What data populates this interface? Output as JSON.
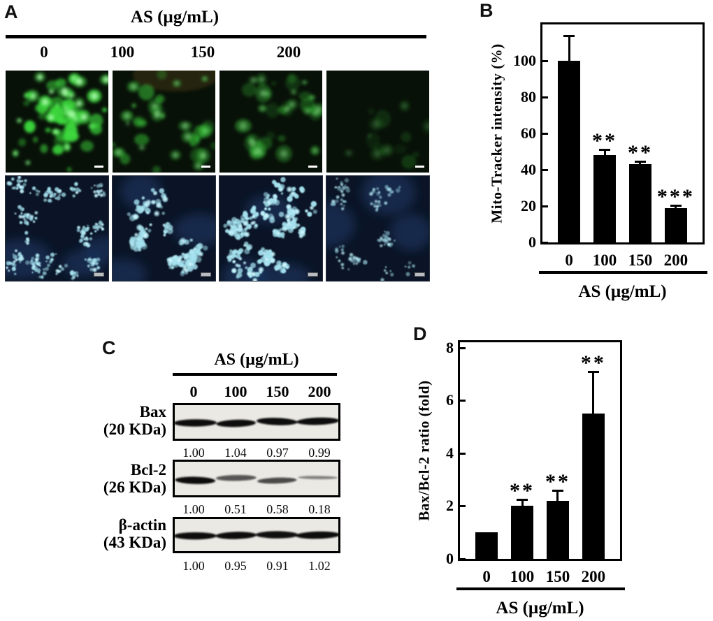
{
  "figure_background": "#ffffff",
  "panel_a": {
    "label": "A",
    "title": "AS (µg/mL)",
    "doses": [
      "0",
      "100",
      "150",
      "200"
    ],
    "rows": [
      {
        "name": "mito-tracker-green-row",
        "stain_color": "#3cd83c",
        "background": "#081108",
        "tiles": [
          {
            "blobs": 60,
            "intensity": 1.0,
            "tint_top": false
          },
          {
            "blobs": 36,
            "intensity": 0.5,
            "tint_top": true
          },
          {
            "blobs": 32,
            "intensity": 0.42,
            "tint_top": false
          },
          {
            "blobs": 16,
            "intensity": 0.2,
            "tint_top": false
          }
        ],
        "scale_bar_color": "#ffffff"
      },
      {
        "name": "nuclei-blue-row",
        "stain_color": "#a5e2ef",
        "background": "#0a1426",
        "tiles": [
          {
            "clusters": 26,
            "brightness": 0.95,
            "dot_scale": 1.0
          },
          {
            "clusters": 17,
            "brightness": 0.9,
            "dot_scale": 1.5
          },
          {
            "clusters": 30,
            "brightness": 1.0,
            "dot_scale": 1.3
          },
          {
            "clusters": 12,
            "brightness": 0.65,
            "dot_scale": 1.0
          }
        ],
        "scale_bar_color": "#b9bdc2"
      }
    ]
  },
  "panel_c": {
    "label": "C",
    "title": "AS (µg/mL)",
    "doses": [
      "0",
      "100",
      "150",
      "200"
    ],
    "blots": [
      {
        "protein": "Bax",
        "mw": "(20 KDa)",
        "values": [
          "1.00",
          "1.04",
          "0.97",
          "0.99"
        ]
      },
      {
        "protein": "Bcl-2",
        "mw": "(26 KDa)",
        "values": [
          "1.00",
          "0.51",
          "0.58",
          "0.18"
        ]
      },
      {
        "protein": "β-actin",
        "mw": "(43 KDa)",
        "values": [
          "1.00",
          "0.95",
          "0.91",
          "1.02"
        ]
      }
    ]
  },
  "chart_data": [
    {
      "id": "b",
      "panel_label": "B",
      "type": "bar",
      "categories": [
        "0",
        "100",
        "150",
        "200"
      ],
      "values": [
        100,
        48,
        43,
        19
      ],
      "errors_upper": [
        14,
        3,
        1.5,
        1.5
      ],
      "sig_labels": [
        "",
        "**",
        "**",
        "***"
      ],
      "title": "",
      "xlabel": "AS (µg/mL)",
      "ylabel": "Mito-Tracker intensity (%)",
      "ylim": [
        0,
        120
      ],
      "yticks": [
        0,
        20,
        40,
        60,
        80,
        100
      ],
      "grid": false,
      "bar_color": "#000000"
    },
    {
      "id": "d",
      "panel_label": "D",
      "type": "bar",
      "categories": [
        "0",
        "100",
        "150",
        "200"
      ],
      "values": [
        1.0,
        2.0,
        2.2,
        5.5
      ],
      "errors_upper": [
        0,
        0.25,
        0.4,
        1.6
      ],
      "sig_labels": [
        "",
        "**",
        "**",
        "**"
      ],
      "title": "",
      "xlabel": "AS (µg/mL)",
      "ylabel": "Bax/Bcl-2 ratio (fold)",
      "ylim": [
        0,
        8.2
      ],
      "yticks": [
        0,
        2,
        4,
        6,
        8
      ],
      "grid": false,
      "bar_color": "#000000"
    }
  ]
}
